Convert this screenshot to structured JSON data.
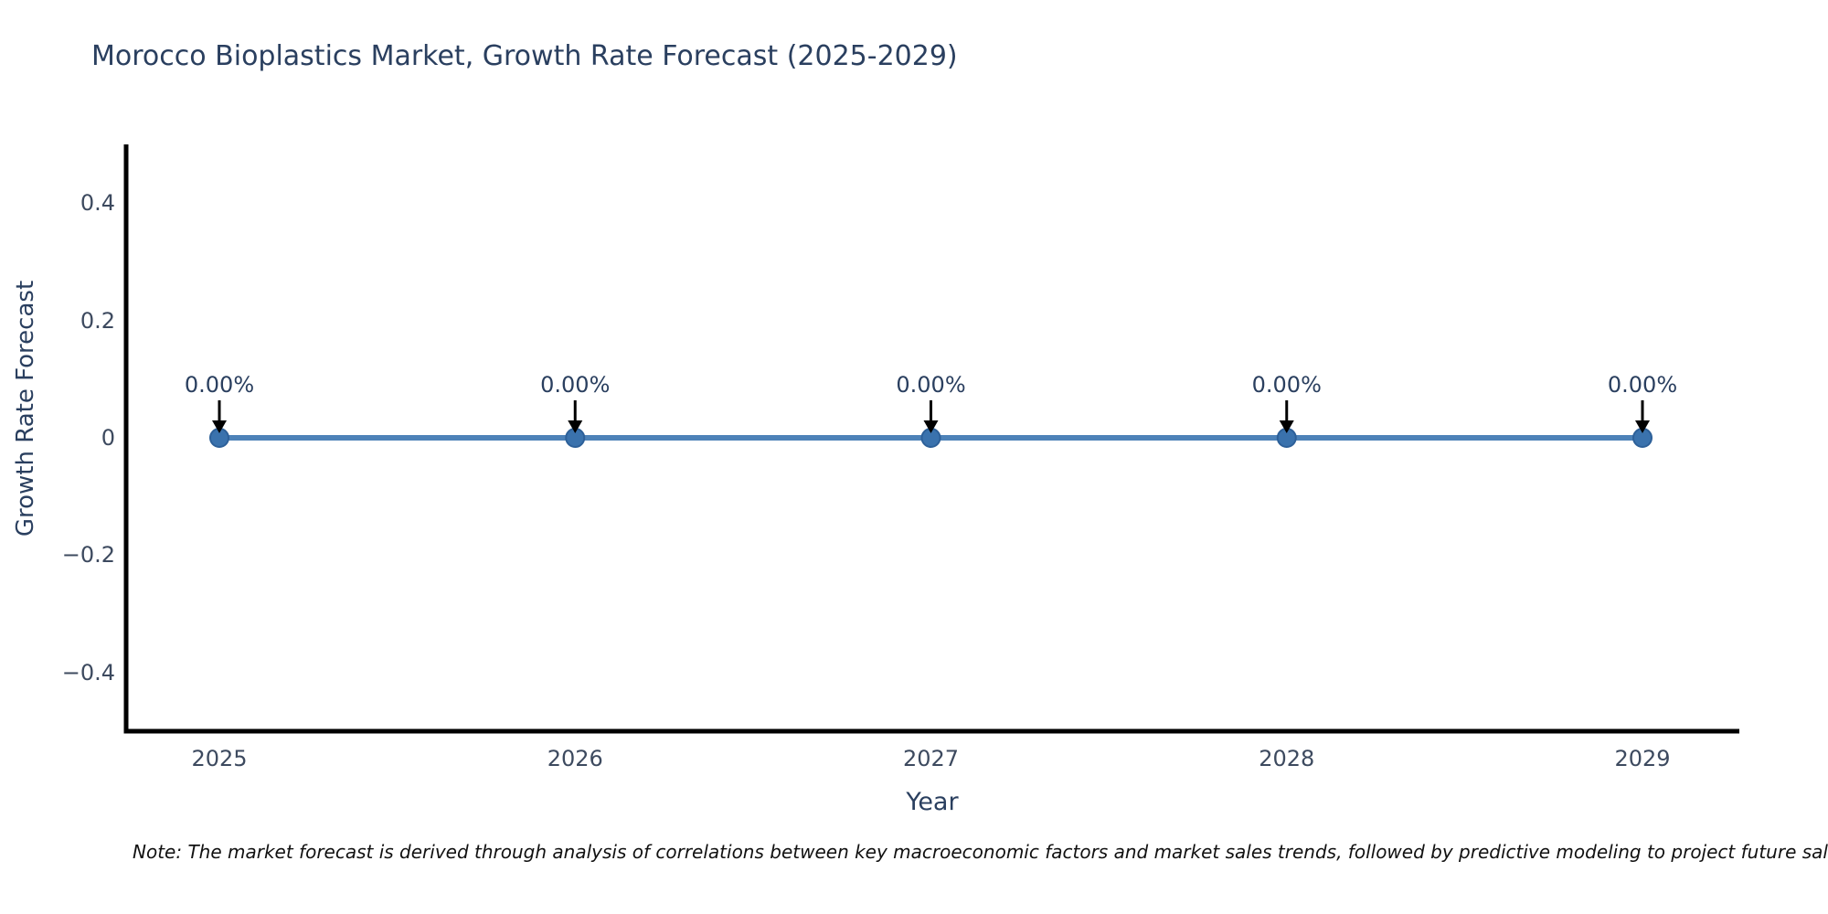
{
  "title": "Morocco Bioplastics Market, Growth Rate Forecast (2025-2029)",
  "note": "Note: The market forecast is derived through analysis of correlations between key macroeconomic factors and market sales trends, followed by predictive modeling to project future sales.",
  "chart_data": {
    "type": "line",
    "title": "Morocco Bioplastics Market, Growth Rate Forecast (2025-2029)",
    "xlabel": "Year",
    "ylabel": "Growth Rate Forecast",
    "categories": [
      "2025",
      "2026",
      "2027",
      "2028",
      "2029"
    ],
    "series": [
      {
        "name": "Growth Rate Forecast",
        "values": [
          0,
          0,
          0,
          0,
          0
        ]
      }
    ],
    "point_labels": [
      "0.00%",
      "0.00%",
      "0.00%",
      "0.00%",
      "0.00%"
    ],
    "annotation_style": "black down-arrow from label to each data point",
    "ylim": [
      -0.5,
      0.5
    ],
    "yticks": [
      0.4,
      0.2,
      0,
      -0.2,
      -0.4
    ],
    "ytick_labels": [
      "0.4",
      "0.2",
      "0",
      "−0.2",
      "−0.4"
    ],
    "grid": false,
    "legend": false,
    "colors": {
      "line": "#4d82b8",
      "marker_fill": "#3a72ad",
      "marker_edge": "#2d6099",
      "axis_line": "#000000",
      "title_text": "#2a3f5f",
      "tick_text": "#3d4a5f",
      "arrow": "#000000",
      "note_text": "#111111"
    }
  }
}
